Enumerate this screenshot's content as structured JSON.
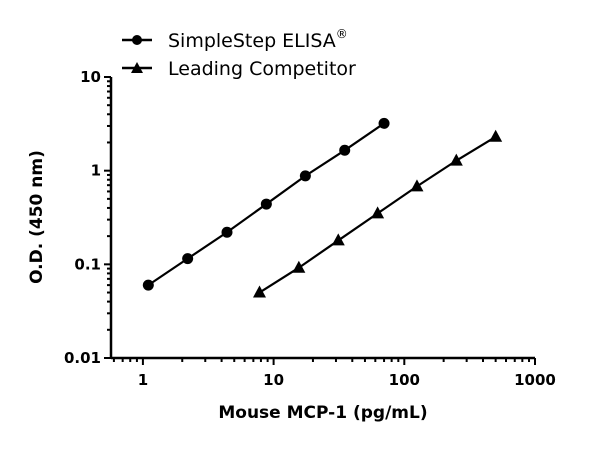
{
  "chart_data": {
    "type": "line",
    "title": "",
    "xlabel": "Mouse MCP-1 (pg/mL)",
    "ylabel": "O.D. (450 nm)",
    "xscale": "log",
    "yscale": "log",
    "xlim": [
      0.57,
      1000
    ],
    "ylim": [
      0.01,
      10
    ],
    "xticks": [
      1,
      10,
      100,
      1000
    ],
    "xtick_labels": [
      "1",
      "10",
      "100",
      "1000"
    ],
    "yticks": [
      0.01,
      0.1,
      1,
      10
    ],
    "ytick_labels": [
      "0.01",
      "0.1",
      "1",
      "10"
    ],
    "grid": false,
    "legend_position": "top-left",
    "series": [
      {
        "name": "SimpleStep ELISA",
        "name_superscript": "®",
        "marker": "circle",
        "color": "#000000",
        "x": [
          1.1,
          2.2,
          4.4,
          8.8,
          17.5,
          35,
          70
        ],
        "y": [
          0.06,
          0.115,
          0.22,
          0.44,
          0.88,
          1.65,
          3.2
        ]
      },
      {
        "name": "Leading Competitor",
        "marker": "triangle",
        "color": "#000000",
        "x": [
          7.8,
          15.6,
          31.25,
          62.5,
          125,
          250,
          500
        ],
        "y": [
          0.05,
          0.092,
          0.18,
          0.35,
          0.68,
          1.28,
          2.3
        ]
      }
    ]
  }
}
